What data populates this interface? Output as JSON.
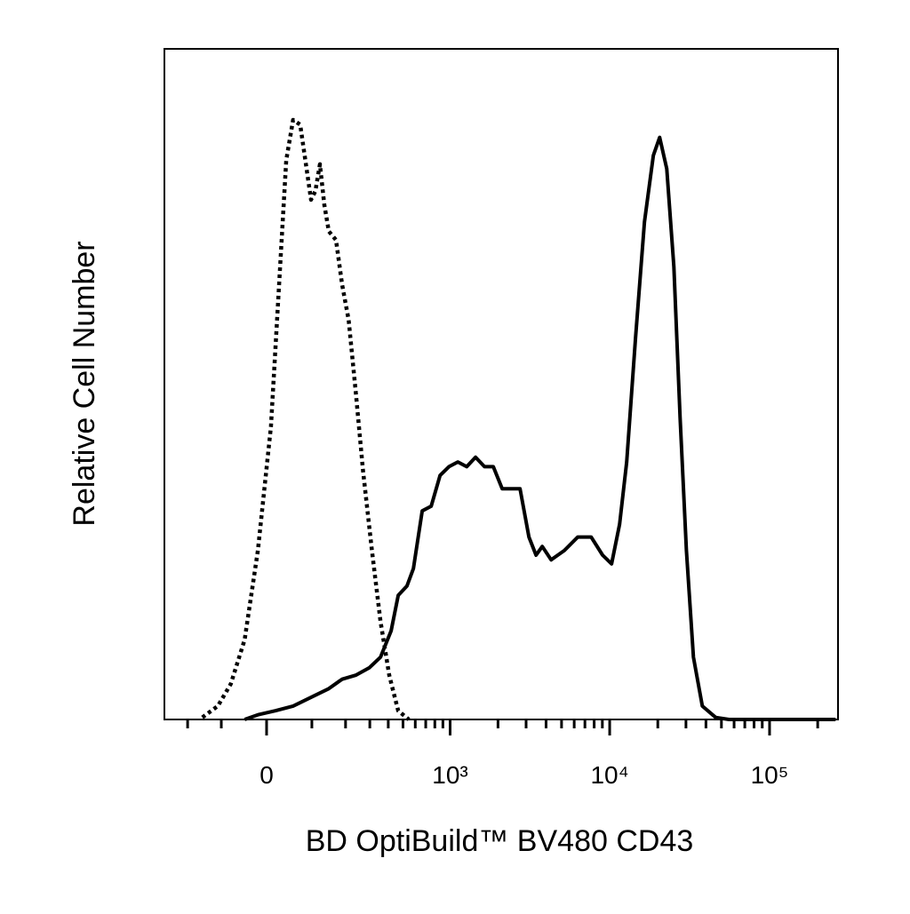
{
  "chart_data": {
    "type": "histogram-overlay",
    "ylabel": "Relative Cell Number",
    "xlabel": "BD OptiBuild™  BV480 CD43",
    "xscale": {
      "type": "arcsinh",
      "cofactor": 143
    },
    "xlim": [
      -295,
      268000
    ],
    "ylim": [
      0,
      100
    ],
    "xticks": [
      {
        "value": 0,
        "label": "0"
      },
      {
        "value": 1000,
        "label": "10³"
      },
      {
        "value": 10000,
        "label": "10⁴"
      },
      {
        "value": 100000,
        "label": "10⁵"
      }
    ],
    "xminorticks": [
      -200,
      -100,
      100,
      200,
      300,
      400,
      500,
      600,
      700,
      800,
      900,
      2000,
      3000,
      4000,
      5000,
      6000,
      7000,
      8000,
      9000,
      20000,
      30000,
      40000,
      50000,
      60000,
      70000,
      80000,
      90000,
      200000
    ],
    "series": [
      {
        "color": "#000000",
        "dash": "dotted",
        "x": [
          -152,
          -109,
          -77,
          -46,
          -18,
          9,
          28,
          41,
          56,
          72,
          87,
          98,
          109,
          121,
          133,
          146,
          168,
          188,
          211,
          238,
          269,
          310,
          355,
          406,
          465,
          546
        ],
        "values": [
          0.3,
          2.0,
          5.3,
          11.9,
          25.2,
          43.7,
          67.5,
          83.4,
          89.4,
          88.7,
          82.1,
          77.5,
          78.8,
          82.8,
          76.8,
          72.8,
          71.5,
          64.9,
          59.6,
          49.0,
          37.1,
          25.2,
          14.6,
          6.6,
          1.3,
          0
        ]
      },
      {
        "color": "#000000",
        "dash": "solid",
        "x": [
          -46,
          -18,
          18,
          56,
          98,
          146,
          188,
          238,
          297,
          355,
          418,
          465,
          530,
          584,
          665,
          758,
          864,
          983,
          1118,
          1272,
          1446,
          1645,
          1870,
          2126,
          2418,
          2748,
          3125,
          3461,
          3789,
          4307,
          5210,
          6317,
          7654,
          9032,
          10276,
          11530,
          12780,
          14530,
          16510,
          18770,
          20540,
          22760,
          25220,
          27590,
          30180,
          33410,
          37980,
          46000,
          55740,
          258800
        ],
        "values": [
          0,
          0.7,
          1.3,
          2.0,
          3.3,
          4.6,
          6.0,
          6.6,
          7.7,
          9.3,
          13.2,
          18.5,
          19.9,
          22.5,
          31.1,
          31.8,
          36.4,
          37.7,
          38.4,
          37.7,
          39.1,
          37.7,
          37.7,
          34.4,
          34.4,
          34.4,
          27.2,
          24.5,
          25.8,
          23.8,
          25.2,
          27.2,
          27.2,
          24.5,
          23.2,
          29.1,
          38.4,
          57.0,
          74.2,
          84.1,
          86.8,
          82.1,
          67.5,
          45.0,
          25.2,
          9.3,
          2.0,
          0.3,
          0,
          0
        ]
      }
    ]
  }
}
